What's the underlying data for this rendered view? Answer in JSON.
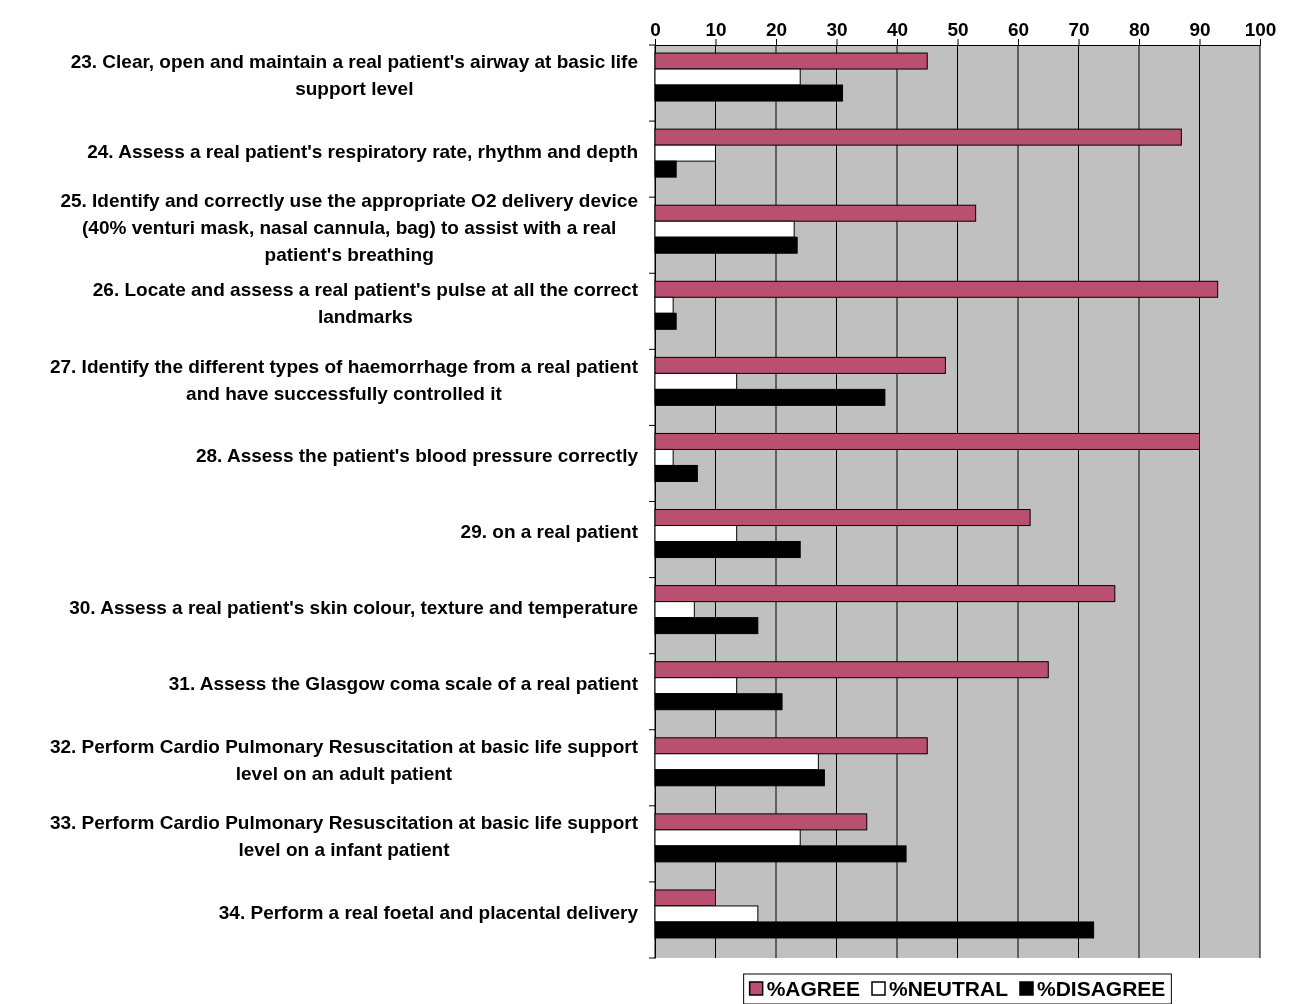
{
  "chart_data": {
    "type": "bar",
    "orientation": "horizontal",
    "categories": [
      "23. Clear, open and maintain a real patient's airway at basic life support level",
      "24. Assess a real patient's respiratory rate, rhythm and depth",
      "25. Identify and correctly use the appropriate O2 delivery device (40% venturi mask, nasal cannula, bag) to assist with a real patient's breathing",
      "26. Locate and assess a real patient's pulse at all the correct landmarks",
      "27. Identify the different types of haemorrhage from a real patient and have successfully controlled it",
      "28. Assess the patient's blood pressure correctly",
      "29. on a real patient",
      "30. Assess a real patient's skin colour, texture and temperature",
      "31. Assess the Glasgow coma scale of a real patient",
      "32. Perform Cardio Pulmonary Resuscitation at basic life support level on an adult patient",
      "33. Perform Cardio Pulmonary Resuscitation at basic life support level on a infant patient",
      "34. Perform a real foetal and placental delivery"
    ],
    "series": [
      {
        "name": "%AGREE",
        "color": "#b9506f",
        "values": [
          45,
          87,
          53,
          93,
          48,
          90,
          62,
          76,
          65,
          45,
          35,
          10
        ]
      },
      {
        "name": "%NEUTRAL",
        "color": "#ffffff",
        "values": [
          24,
          10,
          23,
          3,
          13.5,
          3,
          13.5,
          6.5,
          13.5,
          27,
          24,
          17
        ]
      },
      {
        "name": "%DISAGREE",
        "color": "#000000",
        "values": [
          31,
          3.5,
          23.5,
          3.5,
          38,
          7,
          24,
          17,
          21,
          28,
          41.5,
          72.5
        ]
      }
    ],
    "xlim": [
      0,
      100
    ],
    "xticks": [
      0,
      10,
      20,
      30,
      40,
      50,
      60,
      70,
      80,
      90,
      100
    ],
    "grid": "x",
    "legend": "bottom"
  }
}
